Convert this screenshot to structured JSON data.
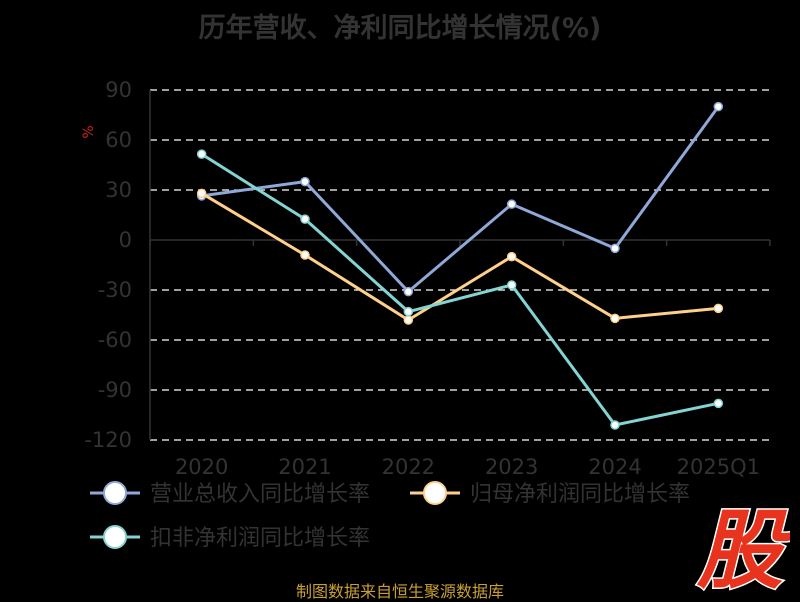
{
  "chart_data": {
    "type": "line",
    "title": "历年营收、净利同比增长情况(%)",
    "ylabel": "%",
    "categories": [
      "2020",
      "2021",
      "2022",
      "2023",
      "2024",
      "2025Q1"
    ],
    "yticks": [
      90,
      60,
      30,
      0,
      -30,
      -60,
      -90,
      -120
    ],
    "ylim": [
      -120,
      90
    ],
    "grid": true,
    "legend_position": "bottom-left",
    "series": [
      {
        "name": "营业总收入同比增长率",
        "color": "#8fa8d8",
        "values": [
          26.5,
          35,
          -31,
          21.5,
          -5,
          80
        ]
      },
      {
        "name": "归母净利润同比增长率",
        "color": "#ffd08c",
        "values": [
          28,
          -9,
          -48,
          -10,
          -47,
          -41
        ]
      },
      {
        "name": "扣非净利润同比增长率",
        "color": "#84d4d4",
        "values": [
          51.5,
          12.5,
          -43,
          -27,
          -111,
          -98
        ]
      }
    ]
  },
  "footer": "制图数据来自恒生聚源数据库",
  "logo_char": "股",
  "colors": {
    "axis_text": "#333333",
    "grid": "#ffffff",
    "logo": "#e8341e"
  }
}
